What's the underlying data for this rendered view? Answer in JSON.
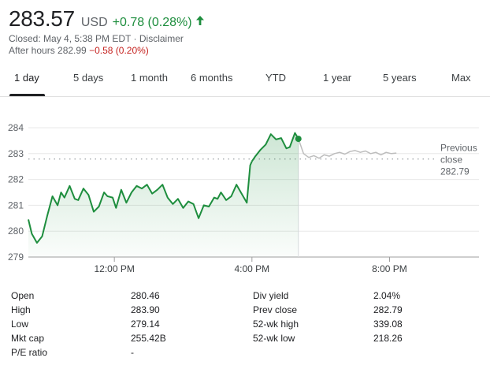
{
  "quote": {
    "price": "283.57",
    "currency": "USD",
    "change": "+0.78 (0.28%)",
    "closed_text": "Closed: May 4, 5:38 PM EDT",
    "separator": "·",
    "disclaimer": "Disclaimer",
    "after_hours_label": "After hours 282.99",
    "after_hours_change": "−0.58 (0.20%)",
    "positive_color": "#1e8e3e",
    "negative_color": "#c5221f"
  },
  "tabs": [
    {
      "label": "1 day",
      "active": true
    },
    {
      "label": "5 days",
      "active": false
    },
    {
      "label": "1 month",
      "active": false
    },
    {
      "label": "6 months",
      "active": false
    },
    {
      "label": "YTD",
      "active": false
    },
    {
      "label": "1 year",
      "active": false
    },
    {
      "label": "5 years",
      "active": false
    },
    {
      "label": "Max",
      "active": false
    }
  ],
  "chart_data": {
    "type": "line",
    "y_ticks": [
      "284",
      "283",
      "282",
      "281",
      "280",
      "279"
    ],
    "ylim": [
      279,
      284
    ],
    "x_ticks": [
      "12:00 PM",
      "4:00 PM",
      "8:00 PM"
    ],
    "x_tick_hours": [
      12,
      16,
      20
    ],
    "xlim_hours": [
      9.5,
      22.6
    ],
    "grid": true,
    "previous_close": {
      "label_line1": "Previous",
      "label_line2": "close",
      "value": "282.79",
      "numeric": 282.79
    },
    "series": [
      {
        "session": "regular",
        "color": "#1e8e3e",
        "x_hours": [
          9.5,
          9.6,
          9.75,
          9.9,
          10.05,
          10.2,
          10.35,
          10.45,
          10.55,
          10.7,
          10.85,
          10.95,
          11.1,
          11.25,
          11.4,
          11.55,
          11.7,
          11.8,
          11.95,
          12.05,
          12.2,
          12.35,
          12.5,
          12.65,
          12.8,
          12.95,
          13.1,
          13.25,
          13.4,
          13.55,
          13.7,
          13.85,
          14.0,
          14.15,
          14.3,
          14.45,
          14.6,
          14.75,
          14.9,
          15.0,
          15.1,
          15.25,
          15.4,
          15.55,
          15.7,
          15.85,
          15.95,
          16.0
        ],
        "values": [
          280.45,
          279.9,
          279.55,
          279.8,
          280.6,
          281.35,
          281.0,
          281.5,
          281.3,
          281.75,
          281.25,
          281.2,
          281.65,
          281.4,
          280.75,
          280.95,
          281.5,
          281.35,
          281.3,
          280.9,
          281.6,
          281.1,
          281.5,
          281.75,
          281.65,
          281.8,
          281.45,
          281.6,
          281.8,
          281.3,
          281.05,
          281.25,
          280.9,
          281.15,
          281.05,
          280.5,
          281.0,
          280.95,
          281.3,
          281.25,
          281.5,
          281.2,
          281.35,
          281.8,
          281.45,
          281.1,
          282.55,
          282.7
        ]
      },
      {
        "session": "regular-close",
        "color": "#1e8e3e",
        "x_hours": [
          16.0,
          16.1,
          16.25,
          16.4,
          16.55,
          16.7,
          16.85,
          17.0,
          17.1,
          17.25,
          17.35
        ],
        "values": [
          282.7,
          282.9,
          283.15,
          283.35,
          283.75,
          283.55,
          283.6,
          283.2,
          283.25,
          283.8,
          283.57
        ]
      },
      {
        "session": "after-hours",
        "color": "#bdbdbd",
        "x_hours": [
          17.35,
          17.5,
          17.65,
          17.8,
          17.95,
          18.1,
          18.25,
          18.4,
          18.55,
          18.7,
          18.85,
          19.0,
          19.15,
          19.3,
          19.45,
          19.6,
          19.75,
          19.9,
          20.05,
          20.2
        ],
        "values": [
          283.57,
          283.0,
          282.85,
          282.92,
          282.82,
          282.95,
          282.9,
          283.0,
          283.05,
          282.98,
          283.08,
          283.12,
          283.05,
          283.1,
          283.0,
          283.05,
          282.95,
          283.05,
          283.0,
          283.02
        ]
      }
    ]
  },
  "stats": {
    "left": [
      {
        "label": "Open",
        "value": "280.46"
      },
      {
        "label": "High",
        "value": "283.90"
      },
      {
        "label": "Low",
        "value": "279.14"
      },
      {
        "label": "Mkt cap",
        "value": "255.42B"
      },
      {
        "label": "P/E ratio",
        "value": "-"
      }
    ],
    "right": [
      {
        "label": "Div yield",
        "value": "2.04%"
      },
      {
        "label": "Prev close",
        "value": "282.79"
      },
      {
        "label": "52-wk high",
        "value": "339.08"
      },
      {
        "label": "52-wk low",
        "value": "218.26"
      }
    ]
  }
}
